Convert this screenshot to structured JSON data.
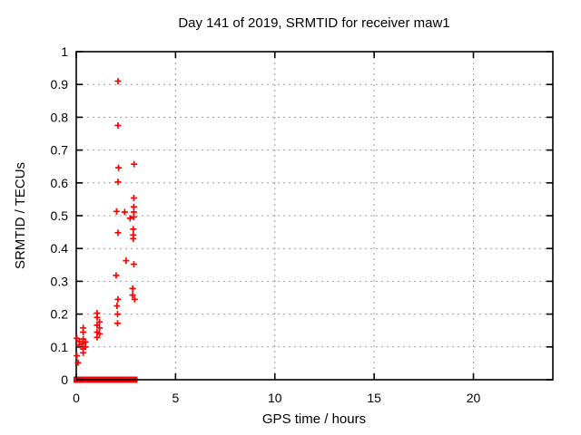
{
  "window": {
    "background": "#ffffff"
  },
  "chart_data": {
    "type": "scatter",
    "title": "Day 141 of 2019, SRMTID for receiver maw1",
    "xlabel": "GPS time / hours",
    "ylabel": "SRMTID / TECUs",
    "xlim": [
      0,
      24
    ],
    "ylim": [
      0,
      1
    ],
    "xticks": [
      {
        "v": 0,
        "label": "0"
      },
      {
        "v": 5,
        "label": "5"
      },
      {
        "v": 10,
        "label": "10"
      },
      {
        "v": 15,
        "label": "15"
      },
      {
        "v": 20,
        "label": "20"
      }
    ],
    "yticks": [
      {
        "v": 0.0,
        "label": "0"
      },
      {
        "v": 0.1,
        "label": "0.1"
      },
      {
        "v": 0.2,
        "label": "0.2"
      },
      {
        "v": 0.3,
        "label": "0.3"
      },
      {
        "v": 0.4,
        "label": "0.4"
      },
      {
        "v": 0.5,
        "label": "0.5"
      },
      {
        "v": 0.6,
        "label": "0.6"
      },
      {
        "v": 0.7,
        "label": "0.7"
      },
      {
        "v": 0.8,
        "label": "0.8"
      },
      {
        "v": 0.9,
        "label": "0.9"
      },
      {
        "v": 1.0,
        "label": "1"
      }
    ],
    "grid": true,
    "legend": "none",
    "marker": "plus",
    "colors": {
      "marker": "#ff0000",
      "grid": "#9c9c9c",
      "frame": "#000000",
      "text": "#000000"
    },
    "series": [
      {
        "name": "SRMTID",
        "points": [
          [
            0.03,
            0.126
          ],
          [
            0.03,
            0.073
          ],
          [
            0.09,
            0.052
          ],
          [
            0.15,
            0.117
          ],
          [
            0.15,
            0.106
          ],
          [
            0.35,
            0.158
          ],
          [
            0.35,
            0.145
          ],
          [
            0.35,
            0.124
          ],
          [
            0.35,
            0.111
          ],
          [
            0.35,
            0.094
          ],
          [
            0.35,
            0.082
          ],
          [
            0.46,
            0.115
          ],
          [
            0.46,
            0.1
          ],
          [
            1.05,
            0.203
          ],
          [
            1.05,
            0.19
          ],
          [
            1.05,
            0.166
          ],
          [
            1.05,
            0.145
          ],
          [
            1.05,
            0.129
          ],
          [
            1.17,
            0.176
          ],
          [
            1.17,
            0.158
          ],
          [
            1.17,
            0.14
          ],
          [
            2.1,
            0.91
          ],
          [
            2.1,
            0.775
          ],
          [
            2.13,
            0.646
          ],
          [
            2.1,
            0.603
          ],
          [
            2.03,
            0.513
          ],
          [
            2.1,
            0.448
          ],
          [
            2.01,
            0.318
          ],
          [
            2.1,
            0.245
          ],
          [
            2.05,
            0.225
          ],
          [
            2.08,
            0.2
          ],
          [
            2.08,
            0.172
          ],
          [
            2.44,
            0.511
          ],
          [
            2.51,
            0.363
          ],
          [
            2.71,
            0.492
          ],
          [
            2.91,
            0.657
          ],
          [
            2.9,
            0.554
          ],
          [
            2.9,
            0.527
          ],
          [
            2.9,
            0.511
          ],
          [
            2.9,
            0.496
          ],
          [
            2.87,
            0.459
          ],
          [
            2.87,
            0.441
          ],
          [
            2.87,
            0.43
          ],
          [
            2.9,
            0.352
          ],
          [
            2.84,
            0.278
          ],
          [
            2.84,
            0.258
          ],
          [
            2.94,
            0.245
          ]
        ]
      }
    ],
    "zero_band_segments": [
      [
        0.0,
        1.93
      ],
      [
        2.1,
        2.95
      ]
    ]
  }
}
